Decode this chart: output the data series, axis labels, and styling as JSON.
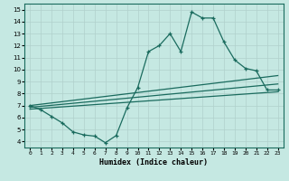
{
  "title": "",
  "xlabel": "Humidex (Indice chaleur)",
  "xlim": [
    -0.5,
    23.5
  ],
  "ylim": [
    3.5,
    15.5
  ],
  "xticks": [
    0,
    1,
    2,
    3,
    4,
    5,
    6,
    7,
    8,
    9,
    10,
    11,
    12,
    13,
    14,
    15,
    16,
    17,
    18,
    19,
    20,
    21,
    22,
    23
  ],
  "yticks": [
    4,
    5,
    6,
    7,
    8,
    9,
    10,
    11,
    12,
    13,
    14,
    15
  ],
  "bg_color": "#c5e8e2",
  "grid_color": "#b0d0cc",
  "line_color": "#1a6b5e",
  "line1_x": [
    0,
    1,
    2,
    3,
    4,
    5,
    6,
    7,
    8,
    9,
    10,
    11,
    12,
    13,
    14,
    15,
    16,
    17,
    18,
    19,
    20,
    21,
    22,
    23
  ],
  "line1_y": [
    7.0,
    6.65,
    6.1,
    5.55,
    4.8,
    4.55,
    4.45,
    3.9,
    4.5,
    6.8,
    8.5,
    11.5,
    12.0,
    13.0,
    11.5,
    14.8,
    14.3,
    14.3,
    12.3,
    10.8,
    10.1,
    9.9,
    8.3,
    8.3
  ],
  "line2_x": [
    0,
    23
  ],
  "line2_y": [
    7.0,
    9.5
  ],
  "line3_x": [
    0,
    23
  ],
  "line3_y": [
    6.85,
    8.8
  ],
  "line4_x": [
    0,
    23
  ],
  "line4_y": [
    6.7,
    8.15
  ]
}
